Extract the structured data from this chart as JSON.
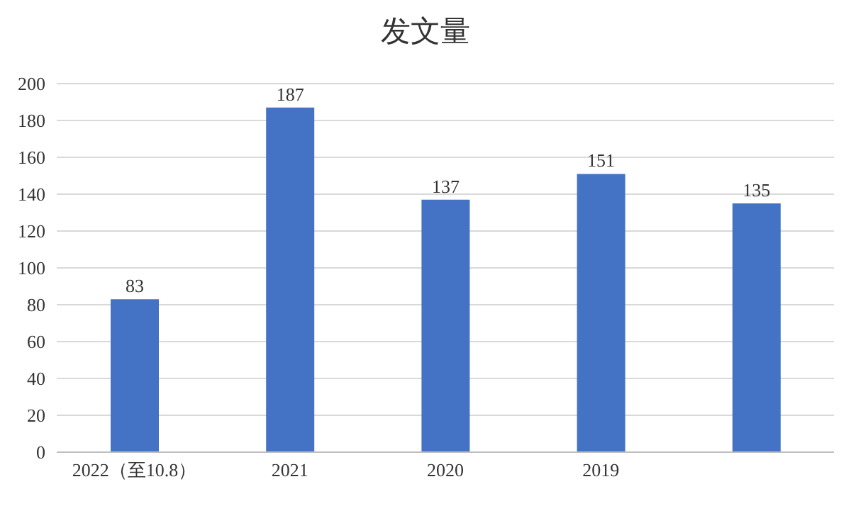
{
  "chart_data": {
    "type": "bar",
    "title": "发文量",
    "categories": [
      "2022（至10.8）",
      "2021",
      "2020",
      "2019",
      null
    ],
    "values": [
      83,
      187,
      137,
      151,
      135
    ],
    "color": "#4472c4",
    "ylim": [
      0,
      200
    ],
    "yticks": [
      0,
      20,
      40,
      60,
      80,
      100,
      120,
      140,
      160,
      180,
      200
    ],
    "grid": "y",
    "data_labels": true
  }
}
